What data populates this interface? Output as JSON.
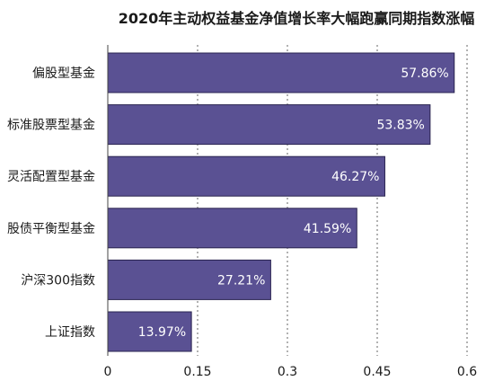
{
  "chart_data": {
    "type": "bar",
    "orientation": "horizontal",
    "title": "2020年主动权益基金净值增长率大幅跑赢同期指数涨幅",
    "categories": [
      "偏股型基金",
      "标准股票型基金",
      "灵活配置型基金",
      "股债平衡型基金",
      "沪深300指数",
      "上证指数"
    ],
    "values": [
      0.5786,
      0.5383,
      0.4627,
      0.4159,
      0.2721,
      0.1397
    ],
    "data_labels": [
      "57.86%",
      "53.83%",
      "46.27%",
      "41.59%",
      "27.21%",
      "13.97%"
    ],
    "xlim": [
      0,
      0.6
    ],
    "xticks": [
      0,
      0.15,
      0.3,
      0.45,
      0.6
    ],
    "xtick_labels": [
      "0",
      "0.15",
      "0.3",
      "0.45",
      "0.6"
    ],
    "xlabel": "",
    "ylabel": "",
    "grid": "vertical dashed",
    "legend": "none",
    "colors": {
      "bar": "#5a5193",
      "bar_label": "#ffffff",
      "text": "#1a1a1a"
    }
  }
}
